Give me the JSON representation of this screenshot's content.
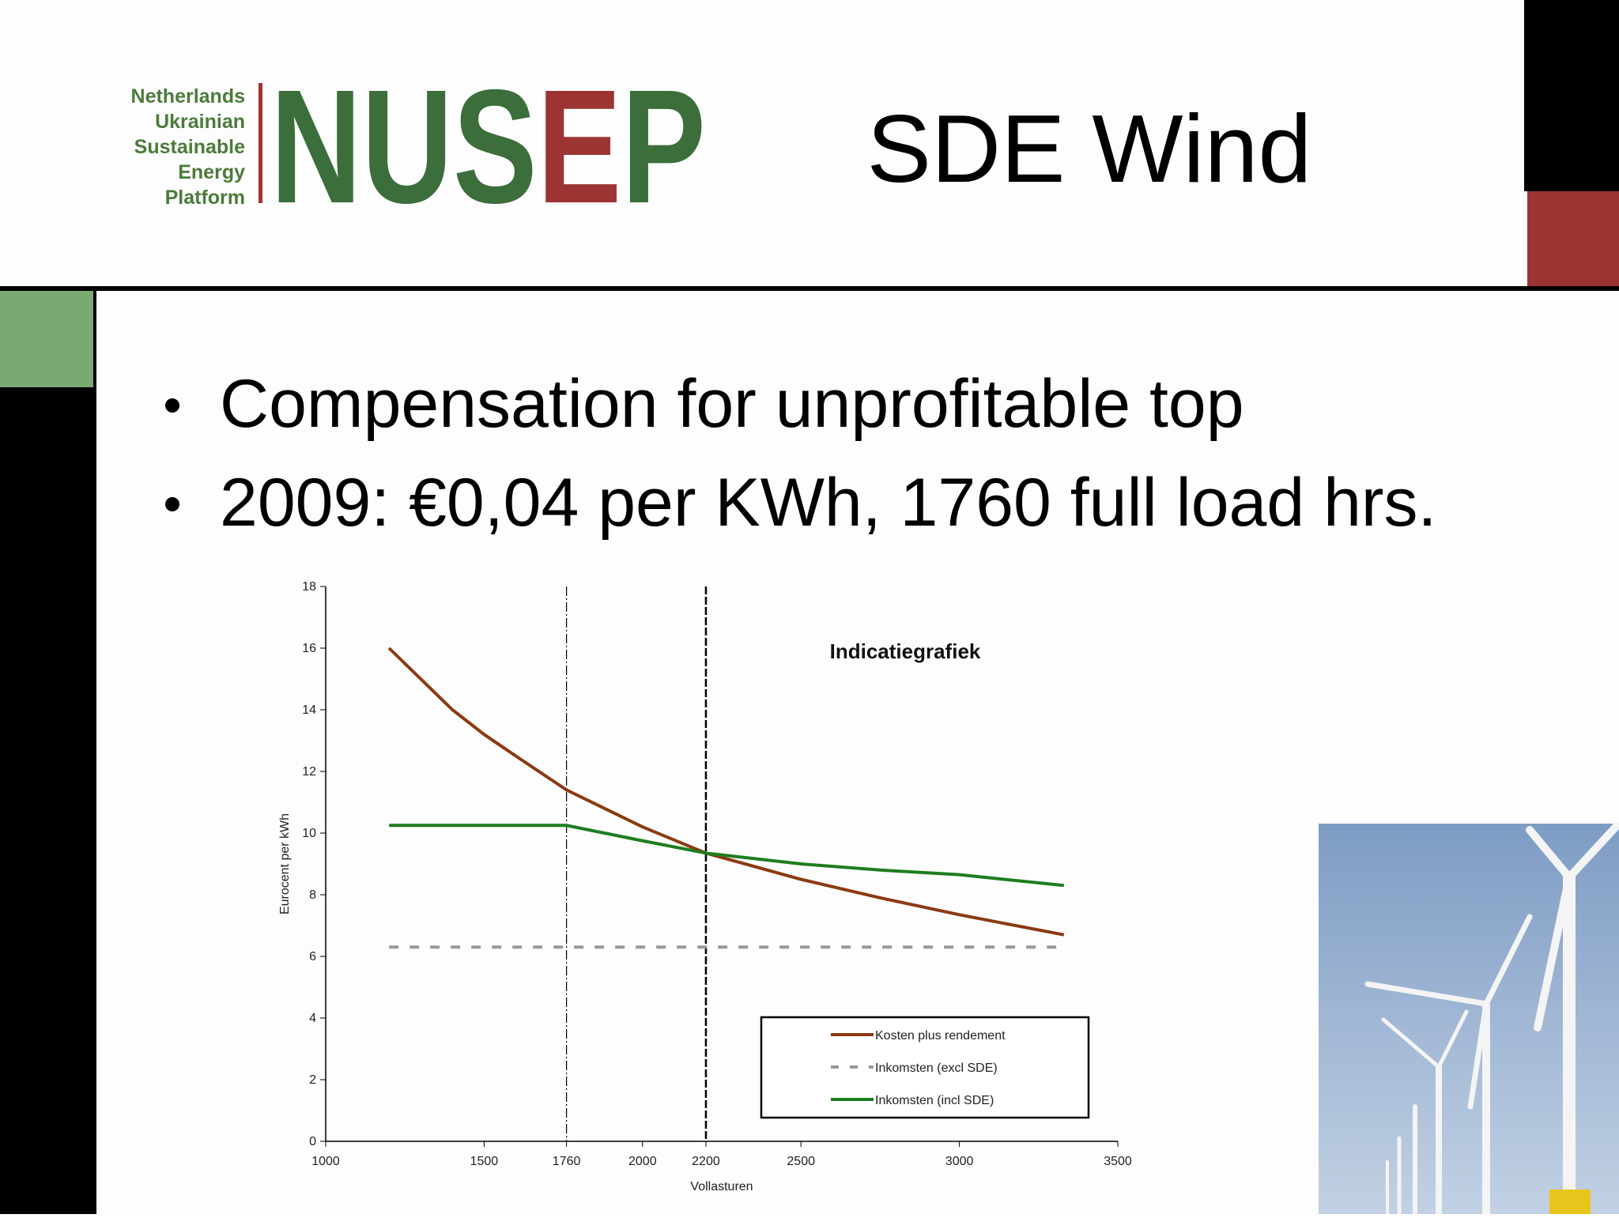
{
  "header": {
    "logo": {
      "lines": [
        "Netherlands",
        "Ukrainian",
        "Sustainable",
        "Energy",
        "Platform"
      ],
      "wordmark": [
        "NUS",
        "E",
        "P"
      ]
    },
    "title": "SDE Wind"
  },
  "bullets": [
    "Compensation for unprofitable top",
    "2009: €0,04 per KWh, 1760 full load hrs."
  ],
  "chart_data": {
    "type": "line",
    "annotation": "Indicatiegrafiek",
    "x_label": "Vollasturen",
    "y_label": "Eurocent per kWh",
    "x": [
      1200,
      1400,
      1500,
      1600,
      1760,
      2000,
      2200,
      2500,
      2750,
      3000,
      3330
    ],
    "series": [
      {
        "name": "Kosten plus rendement",
        "color": "#8b3a12",
        "dash": false,
        "values": [
          16.0,
          14.0,
          13.2,
          12.5,
          11.4,
          10.2,
          9.35,
          8.5,
          7.9,
          7.35,
          6.7
        ]
      },
      {
        "name": "Inkomsten (excl SDE)",
        "color": "#999999",
        "dash": true,
        "values": [
          6.3,
          6.3,
          6.3,
          6.3,
          6.3,
          6.3,
          6.3,
          6.3,
          6.3,
          6.3,
          6.3
        ]
      },
      {
        "name": "Inkomsten (incl SDE)",
        "color": "#1e7d1e",
        "dash": false,
        "values": [
          10.25,
          10.25,
          10.25,
          10.25,
          10.25,
          9.75,
          9.35,
          9.0,
          8.8,
          8.65,
          8.3
        ]
      }
    ],
    "xlim": [
      1000,
      3500
    ],
    "xticks": [
      1000,
      1500,
      1760,
      2000,
      2200,
      2500,
      3000,
      3500
    ],
    "ylim": [
      0,
      18
    ],
    "yticks": [
      0,
      2,
      4,
      6,
      8,
      10,
      12,
      14,
      16,
      18
    ],
    "vlines": [
      1760,
      2200
    ]
  }
}
